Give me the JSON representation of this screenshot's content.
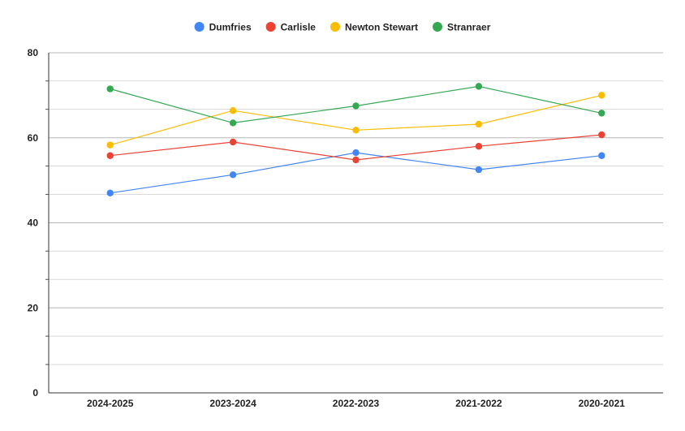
{
  "chart_data": {
    "type": "line",
    "title": "",
    "xlabel": "",
    "ylabel": "",
    "categories": [
      "2024-2025",
      "2023-2024",
      "2022-2023",
      "2021-2022",
      "2020-2021"
    ],
    "ylim": [
      0,
      80
    ],
    "yticks": [
      0,
      20,
      40,
      60,
      80
    ],
    "y_minor_step": 6.67,
    "grid": true,
    "legend_position": "top-center",
    "series": [
      {
        "name": "Dumfries",
        "color": "#4285F4",
        "values": [
          47.0,
          51.3,
          56.5,
          52.5,
          55.8
        ]
      },
      {
        "name": "Carlisle",
        "color": "#EA4335",
        "values": [
          55.8,
          59.0,
          54.8,
          58.0,
          60.7
        ]
      },
      {
        "name": "Newton Stewart",
        "color": "#FBBC04",
        "values": [
          58.3,
          66.4,
          61.8,
          63.2,
          70.0
        ]
      },
      {
        "name": "Stranraer",
        "color": "#34A853",
        "values": [
          71.5,
          63.5,
          67.5,
          72.1,
          65.8
        ]
      }
    ]
  }
}
